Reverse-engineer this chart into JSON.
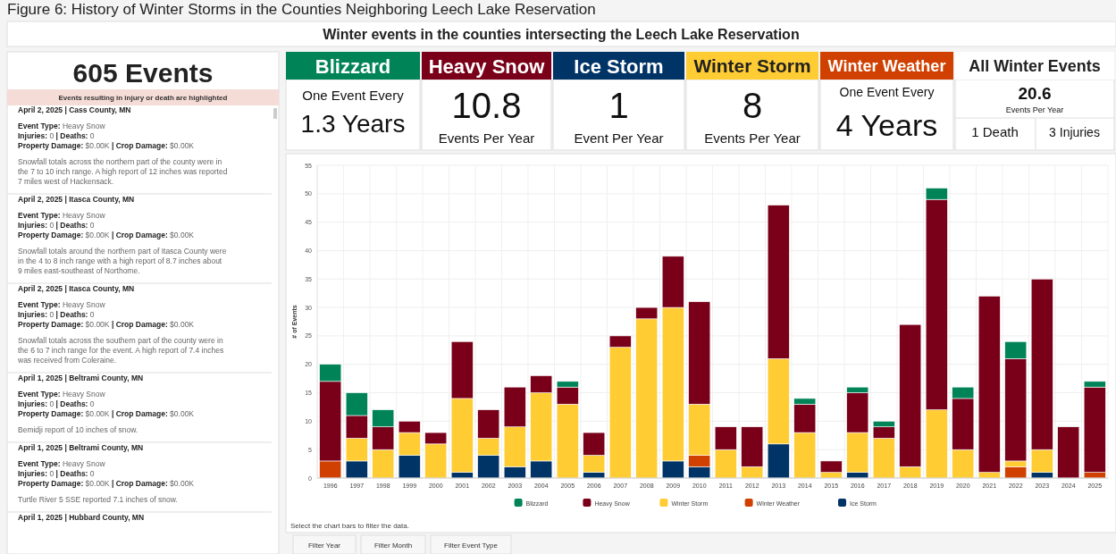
{
  "chart_data": [
    {
      "type": "other",
      "title": "Figure 6: History of Winter Storms in the Counties Neighboring Leech Lake Reservation",
      "subtitle": "Winter events in the counties intersecting the Leech Lake Reservation"
    },
    {
      "type": "other",
      "title": "605 Events",
      "subtitle": "Events resulting in injury or death are highlighted",
      "annotations": [
        "April 2, 2025 | Cass County, MN",
        "Event Type: Heavy Snow",
        "Injuries: 0 | Deaths: 0",
        "Property Damage: $0.00K | Crop Damage: $0.00K",
        "Snowfall totals across the northern part of the county were in the 7 to 10 inch range. A high report of 12 inches was reported 7 miles west of Hackensack.",
        "April 2, 2025 | Itasca County, MN",
        "Event Type: Heavy Snow",
        "Injuries: 0 | Deaths: 0",
        "Property Damage: $0.00K | Crop Damage: $0.00K",
        "Snowfall totals around the northern part of Itasca County were in the 4 to 8 inch range with a high report of 8.7 inches about 9 miles east-southeast of Northome.",
        "April 2, 2025 | Itasca County, MN",
        "Event Type: Heavy Snow",
        "Injuries: 0 | Deaths: 0",
        "Property Damage: $0.00K | Crop Damage: $0.00K",
        "Snowfall totals across the southern part of the county were in the 6 to 7 inch range for the event. A high report of 7.4 inches was received from Coleraine.",
        "April 1, 2025 | Beltrami County, MN",
        "Event Type: Heavy Snow",
        "Injuries: 0 | Deaths: 0",
        "Property Damage: $0.00K | Crop Damage: $0.00K",
        "Bemidji report of 10 inches of snow.",
        "April 1, 2025 | Beltrami County, MN",
        "Event Type: Heavy Snow",
        "Injuries: 0 | Deaths: 0",
        "Property Damage: $0.00K | Crop Damage: $0.00K",
        "Turtle River 5 SSE reported 7.1 inches of snow.",
        "April 1, 2025 | Hubbard County, MN"
      ]
    },
    {
      "type": "other",
      "categories": [
        "Blizzard",
        "Heavy Snow",
        "Ice Storm",
        "Winter Storm",
        "Winter Weather",
        "All Winter Events"
      ],
      "colors": [
        "#008457",
        "#7a0019",
        "#003366",
        "#ffcc33",
        "#d04000",
        "#ffffff"
      ],
      "annotations": [
        "One Event Every",
        "1.3 Years",
        "10.8",
        "Events Per Year",
        "1",
        "Event Per Year",
        "8",
        "Events Per Year",
        "One Event Every",
        "4 Years",
        "20.6",
        "Events Per Year",
        "1 Death",
        "3 Injuries"
      ]
    },
    {
      "type": "bar",
      "stacked": true,
      "ylabel": "# of Events",
      "ylim": [
        0,
        55
      ],
      "yticks": [
        0,
        5,
        10,
        15,
        20,
        25,
        30,
        35,
        40,
        45,
        50,
        55
      ],
      "grid": true,
      "legend": "bottom",
      "categories": [
        "1996",
        "1997",
        "1998",
        "1999",
        "2000",
        "2001",
        "2002",
        "2003",
        "2004",
        "2005",
        "2006",
        "2007",
        "2008",
        "2009",
        "2010",
        "2011",
        "2012",
        "2013",
        "2014",
        "2015",
        "2016",
        "2017",
        "2018",
        "2019",
        "2020",
        "2021",
        "2022",
        "2023",
        "2024",
        "2025"
      ],
      "series": [
        {
          "name": "Ice Storm",
          "color": "#003366",
          "values": [
            0,
            3,
            0,
            4,
            0,
            1,
            4,
            2,
            3,
            0,
            1,
            0,
            0,
            3,
            2,
            0,
            0,
            6,
            0,
            0,
            1,
            0,
            0,
            0,
            0,
            0,
            0,
            1,
            0,
            0
          ]
        },
        {
          "name": "Winter Weather",
          "color": "#d04000",
          "values": [
            3,
            0,
            0,
            0,
            0,
            0,
            0,
            0,
            0,
            0,
            0,
            0,
            0,
            0,
            2,
            0,
            0,
            0,
            0,
            0,
            0,
            0,
            0,
            0,
            0,
            0,
            2,
            0,
            0,
            1
          ]
        },
        {
          "name": "Winter Storm",
          "color": "#ffcc33",
          "values": [
            0,
            4,
            5,
            4,
            6,
            13,
            3,
            7,
            12,
            13,
            3,
            23,
            28,
            27,
            9,
            5,
            2,
            15,
            8,
            1,
            7,
            7,
            2,
            12,
            5,
            1,
            1,
            4,
            0,
            0
          ]
        },
        {
          "name": "Heavy Snow",
          "color": "#7a0019",
          "values": [
            14,
            4,
            4,
            2,
            2,
            10,
            5,
            7,
            3,
            3,
            4,
            2,
            2,
            9,
            18,
            4,
            7,
            27,
            5,
            2,
            7,
            2,
            25,
            37,
            9,
            31,
            18,
            30,
            9,
            15
          ]
        },
        {
          "name": "Blizzard",
          "color": "#008457",
          "values": [
            3,
            4,
            3,
            0,
            0,
            0,
            0,
            0,
            0,
            1,
            0,
            0,
            0,
            0,
            0,
            0,
            0,
            0,
            1,
            0,
            1,
            1,
            0,
            2,
            2,
            0,
            3,
            0,
            0,
            1
          ]
        }
      ],
      "annotations": [
        "Select the chart bars to filter the data.",
        "Filter Year",
        "Filter Month",
        "Filter Event Type"
      ]
    }
  ]
}
